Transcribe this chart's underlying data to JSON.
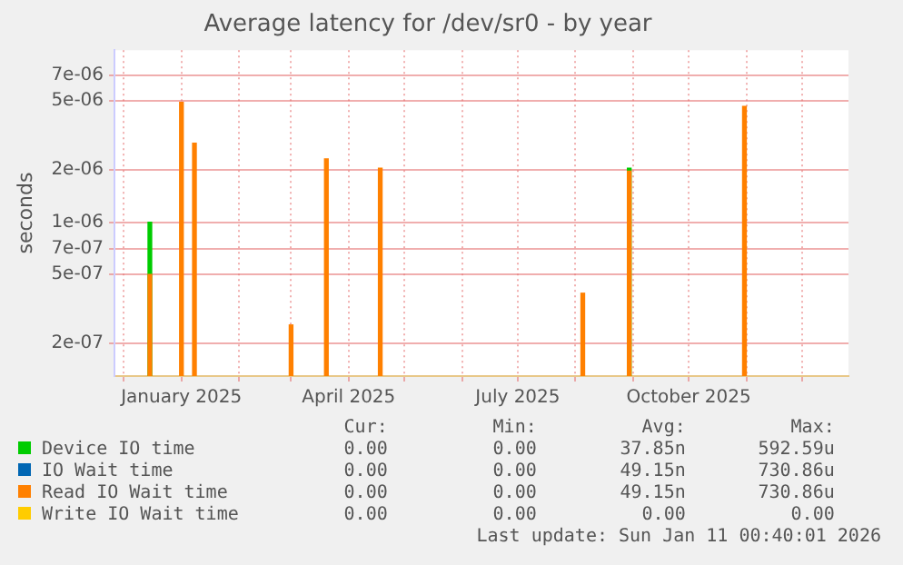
{
  "chart_data": {
    "type": "bar",
    "title": "Average latency for /dev/sr0 - by year",
    "ylabel": "seconds",
    "log": "y",
    "grid": true,
    "legend": "bottom",
    "x": [
      "2024-12-15",
      "2025-01-01",
      "2025-01-08",
      "2025-03-01",
      "2025-03-20",
      "2025-04-18",
      "2025-08-05",
      "2025-08-30",
      "2025-10-31"
    ],
    "series": [
      {
        "name": "Device IO time",
        "color": "#00cc00",
        "values": [
          1e-06,
          null,
          null,
          null,
          null,
          null,
          null,
          2.05e-06,
          null
        ]
      },
      {
        "name": "IO Wait time",
        "color": "#0066b3",
        "values": [
          null,
          null,
          null,
          null,
          null,
          null,
          null,
          null,
          null
        ]
      },
      {
        "name": "Read IO Wait time",
        "color": "#ff8000",
        "values": [
          5e-07,
          4.9e-06,
          2.85e-06,
          2.56e-07,
          2.32e-06,
          2.05e-06,
          3.9e-07,
          1.97e-06,
          4.64e-06
        ]
      },
      {
        "name": "Write IO Wait time",
        "color": "#ffcc00",
        "values": [
          null,
          null,
          null,
          null,
          null,
          null,
          null,
          null,
          null
        ]
      }
    ],
    "xlim": [
      "2024-11-26",
      "2025-12-26"
    ],
    "xticks": [
      {
        "value": "2024-12-01",
        "label": null
      },
      {
        "value": "2025-01-01",
        "label": "January 2025"
      },
      {
        "value": "2025-02-01",
        "label": null
      },
      {
        "value": "2025-03-01",
        "label": null
      },
      {
        "value": "2025-04-01",
        "label": "April 2025"
      },
      {
        "value": "2025-05-01",
        "label": null
      },
      {
        "value": "2025-06-01",
        "label": null
      },
      {
        "value": "2025-07-01",
        "label": "July 2025"
      },
      {
        "value": "2025-08-01",
        "label": null
      },
      {
        "value": "2025-09-01",
        "label": null
      },
      {
        "value": "2025-10-01",
        "label": "October 2025"
      },
      {
        "value": "2025-11-01",
        "label": null
      },
      {
        "value": "2025-12-01",
        "label": null
      }
    ],
    "ylim": [
      1.3e-07,
      9.8e-06
    ],
    "yticks": [
      {
        "value": 2e-07,
        "label": "2e-07"
      },
      {
        "value": 5e-07,
        "label": "5e-07"
      },
      {
        "value": 7e-07,
        "label": "7e-07"
      },
      {
        "value": 1e-06,
        "label": "1e-06"
      },
      {
        "value": 2e-06,
        "label": "2e-06"
      },
      {
        "value": 5e-06,
        "label": "5e-06"
      },
      {
        "value": 7e-06,
        "label": "7e-06"
      }
    ],
    "annotations": [
      "Cur:",
      "Min:",
      "Avg:",
      "Max:",
      "0.00",
      "0.00",
      "37.85n",
      "592.59u",
      "0.00",
      "0.00",
      "49.15n",
      "730.86u",
      "0.00",
      "0.00",
      "49.15n",
      "730.86u",
      "0.00",
      "0.00",
      "0.00",
      "0.00",
      "Last update: Sun Jan 11 00:40:01 2026"
    ]
  }
}
